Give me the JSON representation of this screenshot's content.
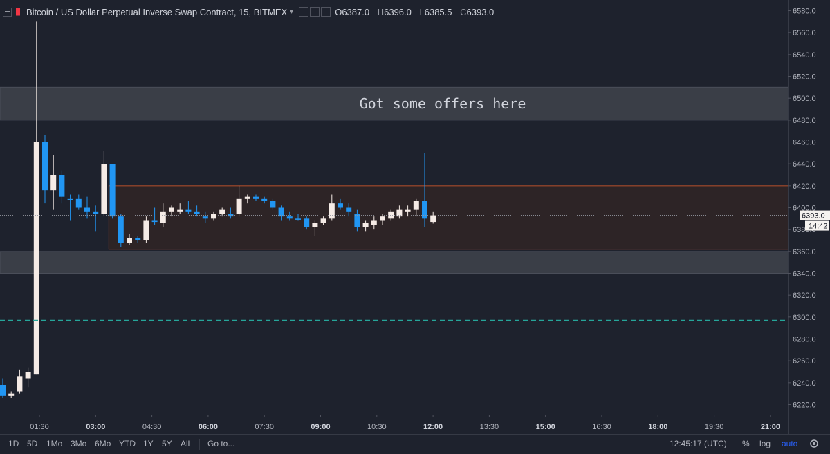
{
  "header": {
    "title": "Bitcoin / US Dollar Perpetual Inverse Swap Contract, 15, BITMEX",
    "open_label": "O",
    "open": "6387.0",
    "high_label": "H",
    "high": "6396.0",
    "low_label": "L",
    "low": "6385.5",
    "close_label": "C",
    "close": "6393.0"
  },
  "price_axis": {
    "ticks": [
      "6580.0",
      "6560.0",
      "6540.0",
      "6520.0",
      "6500.0",
      "6480.0",
      "6460.0",
      "6440.0",
      "6420.0",
      "6400.0",
      "6380.0",
      "6360.0",
      "6340.0",
      "6320.0",
      "6300.0",
      "6280.0",
      "6260.0",
      "6240.0",
      "6220.0"
    ],
    "last_price": "6393.0",
    "countdown": "14:42"
  },
  "time_axis": {
    "ticks": [
      {
        "label": "01:30",
        "bold": false
      },
      {
        "label": "03:00",
        "bold": true
      },
      {
        "label": "04:30",
        "bold": false
      },
      {
        "label": "06:00",
        "bold": true
      },
      {
        "label": "07:30",
        "bold": false
      },
      {
        "label": "09:00",
        "bold": true
      },
      {
        "label": "10:30",
        "bold": false
      },
      {
        "label": "12:00",
        "bold": true
      },
      {
        "label": "13:30",
        "bold": false
      },
      {
        "label": "15:00",
        "bold": true
      },
      {
        "label": "16:30",
        "bold": false
      },
      {
        "label": "18:00",
        "bold": true
      },
      {
        "label": "19:30",
        "bold": false
      },
      {
        "label": "21:00",
        "bold": true
      }
    ]
  },
  "annotations": {
    "offers_text": "Got some offers here"
  },
  "bottom_bar": {
    "ranges": [
      "1D",
      "5D",
      "1Mo",
      "3Mo",
      "6Mo",
      "YTD",
      "1Y",
      "5Y",
      "All"
    ],
    "goto": "Go to...",
    "clock": "12:45:17 (UTC)",
    "percent": "%",
    "log": "log",
    "auto": "auto"
  },
  "colors": {
    "background": "#1e222d",
    "up": "#f5ebe6",
    "down": "#2196f3",
    "offers_zone": "#3a3e47",
    "range_box": "#2e2526",
    "range_border": "#c0532a",
    "support_line": "#26a69a",
    "symbol_marker": "#f23645"
  },
  "chart_data": {
    "type": "candlestick",
    "timeframe": "15",
    "ylim": [
      6210,
      6590
    ],
    "price_tick_step": 20,
    "candles": [
      {
        "o": 6238,
        "h": 6244,
        "l": 6226,
        "c": 6228
      },
      {
        "o": 6228,
        "h": 6232,
        "l": 6226,
        "c": 6230
      },
      {
        "o": 6232,
        "h": 6252,
        "l": 6230,
        "c": 6246
      },
      {
        "o": 6244,
        "h": 6254,
        "l": 6236,
        "c": 6250
      },
      {
        "o": 6248,
        "h": 6570,
        "l": 6248,
        "c": 6460
      },
      {
        "o": 6460,
        "h": 6466,
        "l": 6404,
        "c": 6416
      },
      {
        "o": 6416,
        "h": 6448,
        "l": 6398,
        "c": 6430
      },
      {
        "o": 6430,
        "h": 6434,
        "l": 6404,
        "c": 6410
      },
      {
        "o": 6408,
        "h": 6412,
        "l": 6388,
        "c": 6407
      },
      {
        "o": 6408,
        "h": 6412,
        "l": 6398,
        "c": 6400
      },
      {
        "o": 6400,
        "h": 6410,
        "l": 6390,
        "c": 6396
      },
      {
        "o": 6396,
        "h": 6402,
        "l": 6378,
        "c": 6394
      },
      {
        "o": 6394,
        "h": 6452,
        "l": 6392,
        "c": 6440
      },
      {
        "o": 6440,
        "h": 6440,
        "l": 6390,
        "c": 6392
      },
      {
        "o": 6392,
        "h": 6394,
        "l": 6364,
        "c": 6368
      },
      {
        "o": 6368,
        "h": 6376,
        "l": 6366,
        "c": 6372
      },
      {
        "o": 6372,
        "h": 6374,
        "l": 6368,
        "c": 6370
      },
      {
        "o": 6370,
        "h": 6392,
        "l": 6368,
        "c": 6388
      },
      {
        "o": 6388,
        "h": 6400,
        "l": 6384,
        "c": 6387
      },
      {
        "o": 6386,
        "h": 6404,
        "l": 6382,
        "c": 6396
      },
      {
        "o": 6396,
        "h": 6402,
        "l": 6392,
        "c": 6400
      },
      {
        "o": 6396,
        "h": 6404,
        "l": 6394,
        "c": 6398
      },
      {
        "o": 6398,
        "h": 6406,
        "l": 6394,
        "c": 6396
      },
      {
        "o": 6396,
        "h": 6402,
        "l": 6392,
        "c": 6394
      },
      {
        "o": 6392,
        "h": 6396,
        "l": 6386,
        "c": 6390
      },
      {
        "o": 6390,
        "h": 6396,
        "l": 6388,
        "c": 6394
      },
      {
        "o": 6394,
        "h": 6400,
        "l": 6392,
        "c": 6398
      },
      {
        "o": 6394,
        "h": 6400,
        "l": 6390,
        "c": 6392
      },
      {
        "o": 6394,
        "h": 6420,
        "l": 6392,
        "c": 6408
      },
      {
        "o": 6408,
        "h": 6412,
        "l": 6404,
        "c": 6410
      },
      {
        "o": 6410,
        "h": 6412,
        "l": 6406,
        "c": 6408
      },
      {
        "o": 6408,
        "h": 6410,
        "l": 6404,
        "c": 6406
      },
      {
        "o": 6406,
        "h": 6408,
        "l": 6398,
        "c": 6400
      },
      {
        "o": 6400,
        "h": 6402,
        "l": 6388,
        "c": 6392
      },
      {
        "o": 6392,
        "h": 6396,
        "l": 6388,
        "c": 6390
      },
      {
        "o": 6390,
        "h": 6394,
        "l": 6388,
        "c": 6389
      },
      {
        "o": 6390,
        "h": 6392,
        "l": 6380,
        "c": 6382
      },
      {
        "o": 6382,
        "h": 6388,
        "l": 6374,
        "c": 6386
      },
      {
        "o": 6386,
        "h": 6392,
        "l": 6384,
        "c": 6390
      },
      {
        "o": 6390,
        "h": 6412,
        "l": 6388,
        "c": 6404
      },
      {
        "o": 6404,
        "h": 6408,
        "l": 6398,
        "c": 6400
      },
      {
        "o": 6400,
        "h": 6404,
        "l": 6392,
        "c": 6396
      },
      {
        "o": 6394,
        "h": 6398,
        "l": 6378,
        "c": 6382
      },
      {
        "o": 6382,
        "h": 6388,
        "l": 6378,
        "c": 6386
      },
      {
        "o": 6384,
        "h": 6392,
        "l": 6380,
        "c": 6388
      },
      {
        "o": 6388,
        "h": 6394,
        "l": 6384,
        "c": 6392
      },
      {
        "o": 6390,
        "h": 6398,
        "l": 6388,
        "c": 6396
      },
      {
        "o": 6392,
        "h": 6402,
        "l": 6390,
        "c": 6398
      },
      {
        "o": 6396,
        "h": 6402,
        "l": 6392,
        "c": 6398
      },
      {
        "o": 6398,
        "h": 6408,
        "l": 6392,
        "c": 6406
      },
      {
        "o": 6406,
        "h": 6450,
        "l": 6382,
        "c": 6390
      },
      {
        "o": 6387,
        "h": 6396,
        "l": 6385.5,
        "c": 6393
      }
    ],
    "zones": [
      {
        "name": "offers-zone",
        "from": 6480,
        "to": 6510
      },
      {
        "name": "support-zone",
        "from": 6340,
        "to": 6360
      }
    ],
    "range_box": {
      "from": 6362,
      "to": 6420,
      "start_candle": 12
    },
    "support_line": 6297
  }
}
